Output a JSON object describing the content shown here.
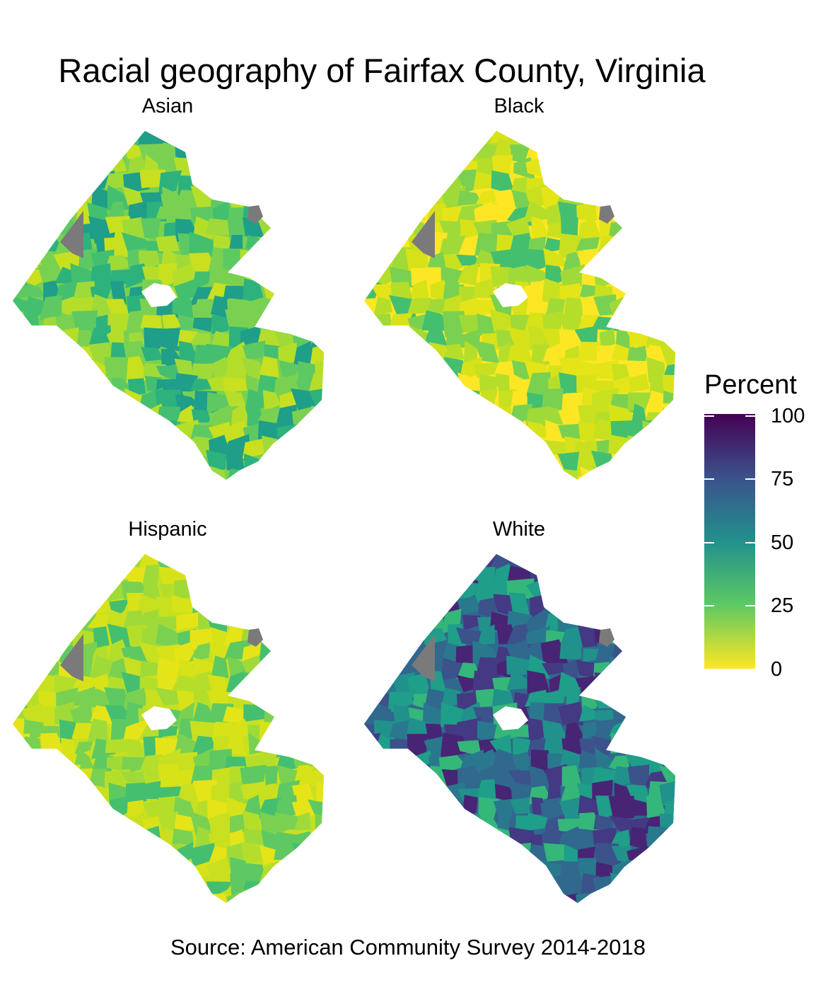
{
  "title": "Racial geography of Fairfax County, Virginia",
  "caption": "Source: American Community Survey 2014-2018",
  "facets": [
    {
      "label": "Asian"
    },
    {
      "label": "Black"
    },
    {
      "label": "Hispanic"
    },
    {
      "label": "White"
    }
  ],
  "legend": {
    "title": "Percent",
    "ticks": [
      "100",
      "75",
      "50",
      "25",
      "0"
    ],
    "scale": "viridis (reversed)",
    "range": [
      0,
      100
    ],
    "colors": [
      "#440154",
      "#3b528b",
      "#21918c",
      "#5ec962",
      "#fde725"
    ],
    "na_color": "#7a7a7a"
  },
  "facet_palettes": [
    [
      "#7ad151",
      "#5ec962",
      "#a0da39",
      "#44bf70",
      "#c8e020",
      "#2db27d",
      "#1f9e89",
      "#b5de2b"
    ],
    [
      "#fde725",
      "#e5e419",
      "#c8e020",
      "#b5de2b",
      "#a0da39",
      "#7ad151",
      "#44bf70",
      "#d8e219"
    ],
    [
      "#c8e020",
      "#d8e219",
      "#b5de2b",
      "#a0da39",
      "#7ad151",
      "#e5e419",
      "#5ec962",
      "#44bf70"
    ],
    [
      "#31688e",
      "#2a788e",
      "#3b528b",
      "#443983",
      "#21918c",
      "#1f9e89",
      "#482475",
      "#35b779"
    ]
  ]
}
